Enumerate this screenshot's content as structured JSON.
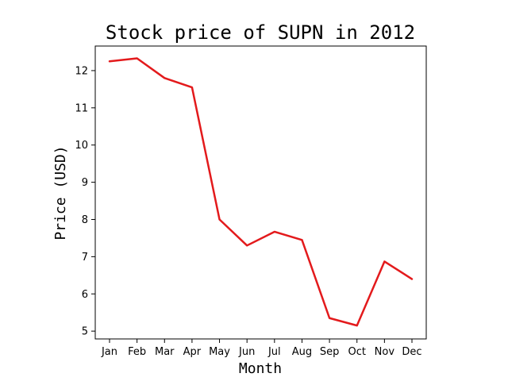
{
  "chart_data": {
    "type": "line",
    "title": "Stock price of SUPN in 2012",
    "xlabel": "Month",
    "ylabel": "Price (USD)",
    "categories": [
      "Jan",
      "Feb",
      "Mar",
      "Apr",
      "May",
      "Jun",
      "Jul",
      "Aug",
      "Sep",
      "Oct",
      "Nov",
      "Dec"
    ],
    "series": [
      {
        "values": [
          12.25,
          12.33,
          11.8,
          11.55,
          8.0,
          7.3,
          7.67,
          7.45,
          5.35,
          5.15,
          6.87,
          6.4
        ],
        "color": "#e31a1c"
      }
    ],
    "ylim": [
      4.79,
      12.66
    ],
    "yticks": [
      5,
      6,
      7,
      8,
      9,
      10,
      11,
      12
    ],
    "grid": false,
    "legend": "none"
  }
}
